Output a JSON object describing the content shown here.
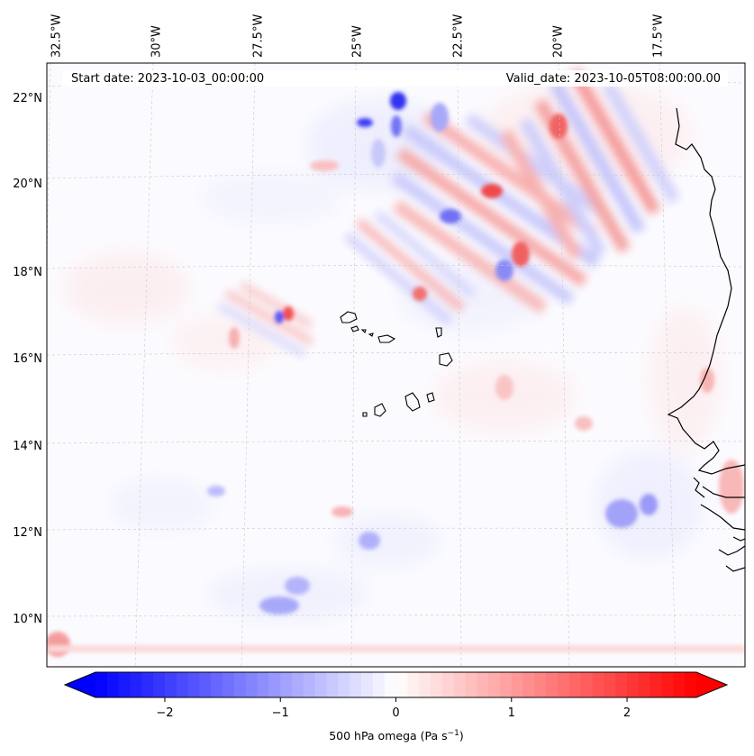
{
  "map": {
    "start_date_text": "Start date: 2023-10-03_00:00:00",
    "valid_date_text": "Valid_date: 2023-10-05T08:00:00.00",
    "extent": {
      "lon": [
        -32.5,
        -15.5
      ],
      "lat": [
        9.0,
        22.8
      ]
    },
    "lon_labels": [
      {
        "lon": -32.5,
        "text": "32.5°W"
      },
      {
        "lon": -30.0,
        "text": "30°W"
      },
      {
        "lon": -27.5,
        "text": "27.5°W"
      },
      {
        "lon": -25.0,
        "text": "25°W"
      },
      {
        "lon": -22.5,
        "text": "22.5°W"
      },
      {
        "lon": -20.0,
        "text": "20°W"
      },
      {
        "lon": -17.5,
        "text": "17.5°W"
      }
    ],
    "lat_labels": [
      {
        "lat": 22,
        "text": "22°N"
      },
      {
        "lat": 20,
        "text": "20°N"
      },
      {
        "lat": 18,
        "text": "18°N"
      },
      {
        "lat": 16,
        "text": "16°N"
      },
      {
        "lat": 14,
        "text": "14°N"
      },
      {
        "lat": 12,
        "text": "12°N"
      },
      {
        "lat": 10,
        "text": "10°N"
      }
    ],
    "gridlines": true,
    "coastline_color": "#000000",
    "land_features": [
      "cape-verde-islands",
      "west-african-coast"
    ]
  },
  "colorbar": {
    "cmap": "bwr",
    "min": -2.6,
    "max": 2.6,
    "extend": "both",
    "ticks": [
      {
        "value": -2,
        "text": "−2"
      },
      {
        "value": -1,
        "text": "−1"
      },
      {
        "value": 0,
        "text": "0"
      },
      {
        "value": 1,
        "text": "1"
      },
      {
        "value": 2,
        "text": "2"
      }
    ],
    "label_main": "500 hPa omega (Pa s",
    "label_sup": "−1",
    "label_end": ")",
    "colors": {
      "negative": "#0000ff",
      "zero": "#ffffff",
      "positive": "#ff0000"
    }
  }
}
